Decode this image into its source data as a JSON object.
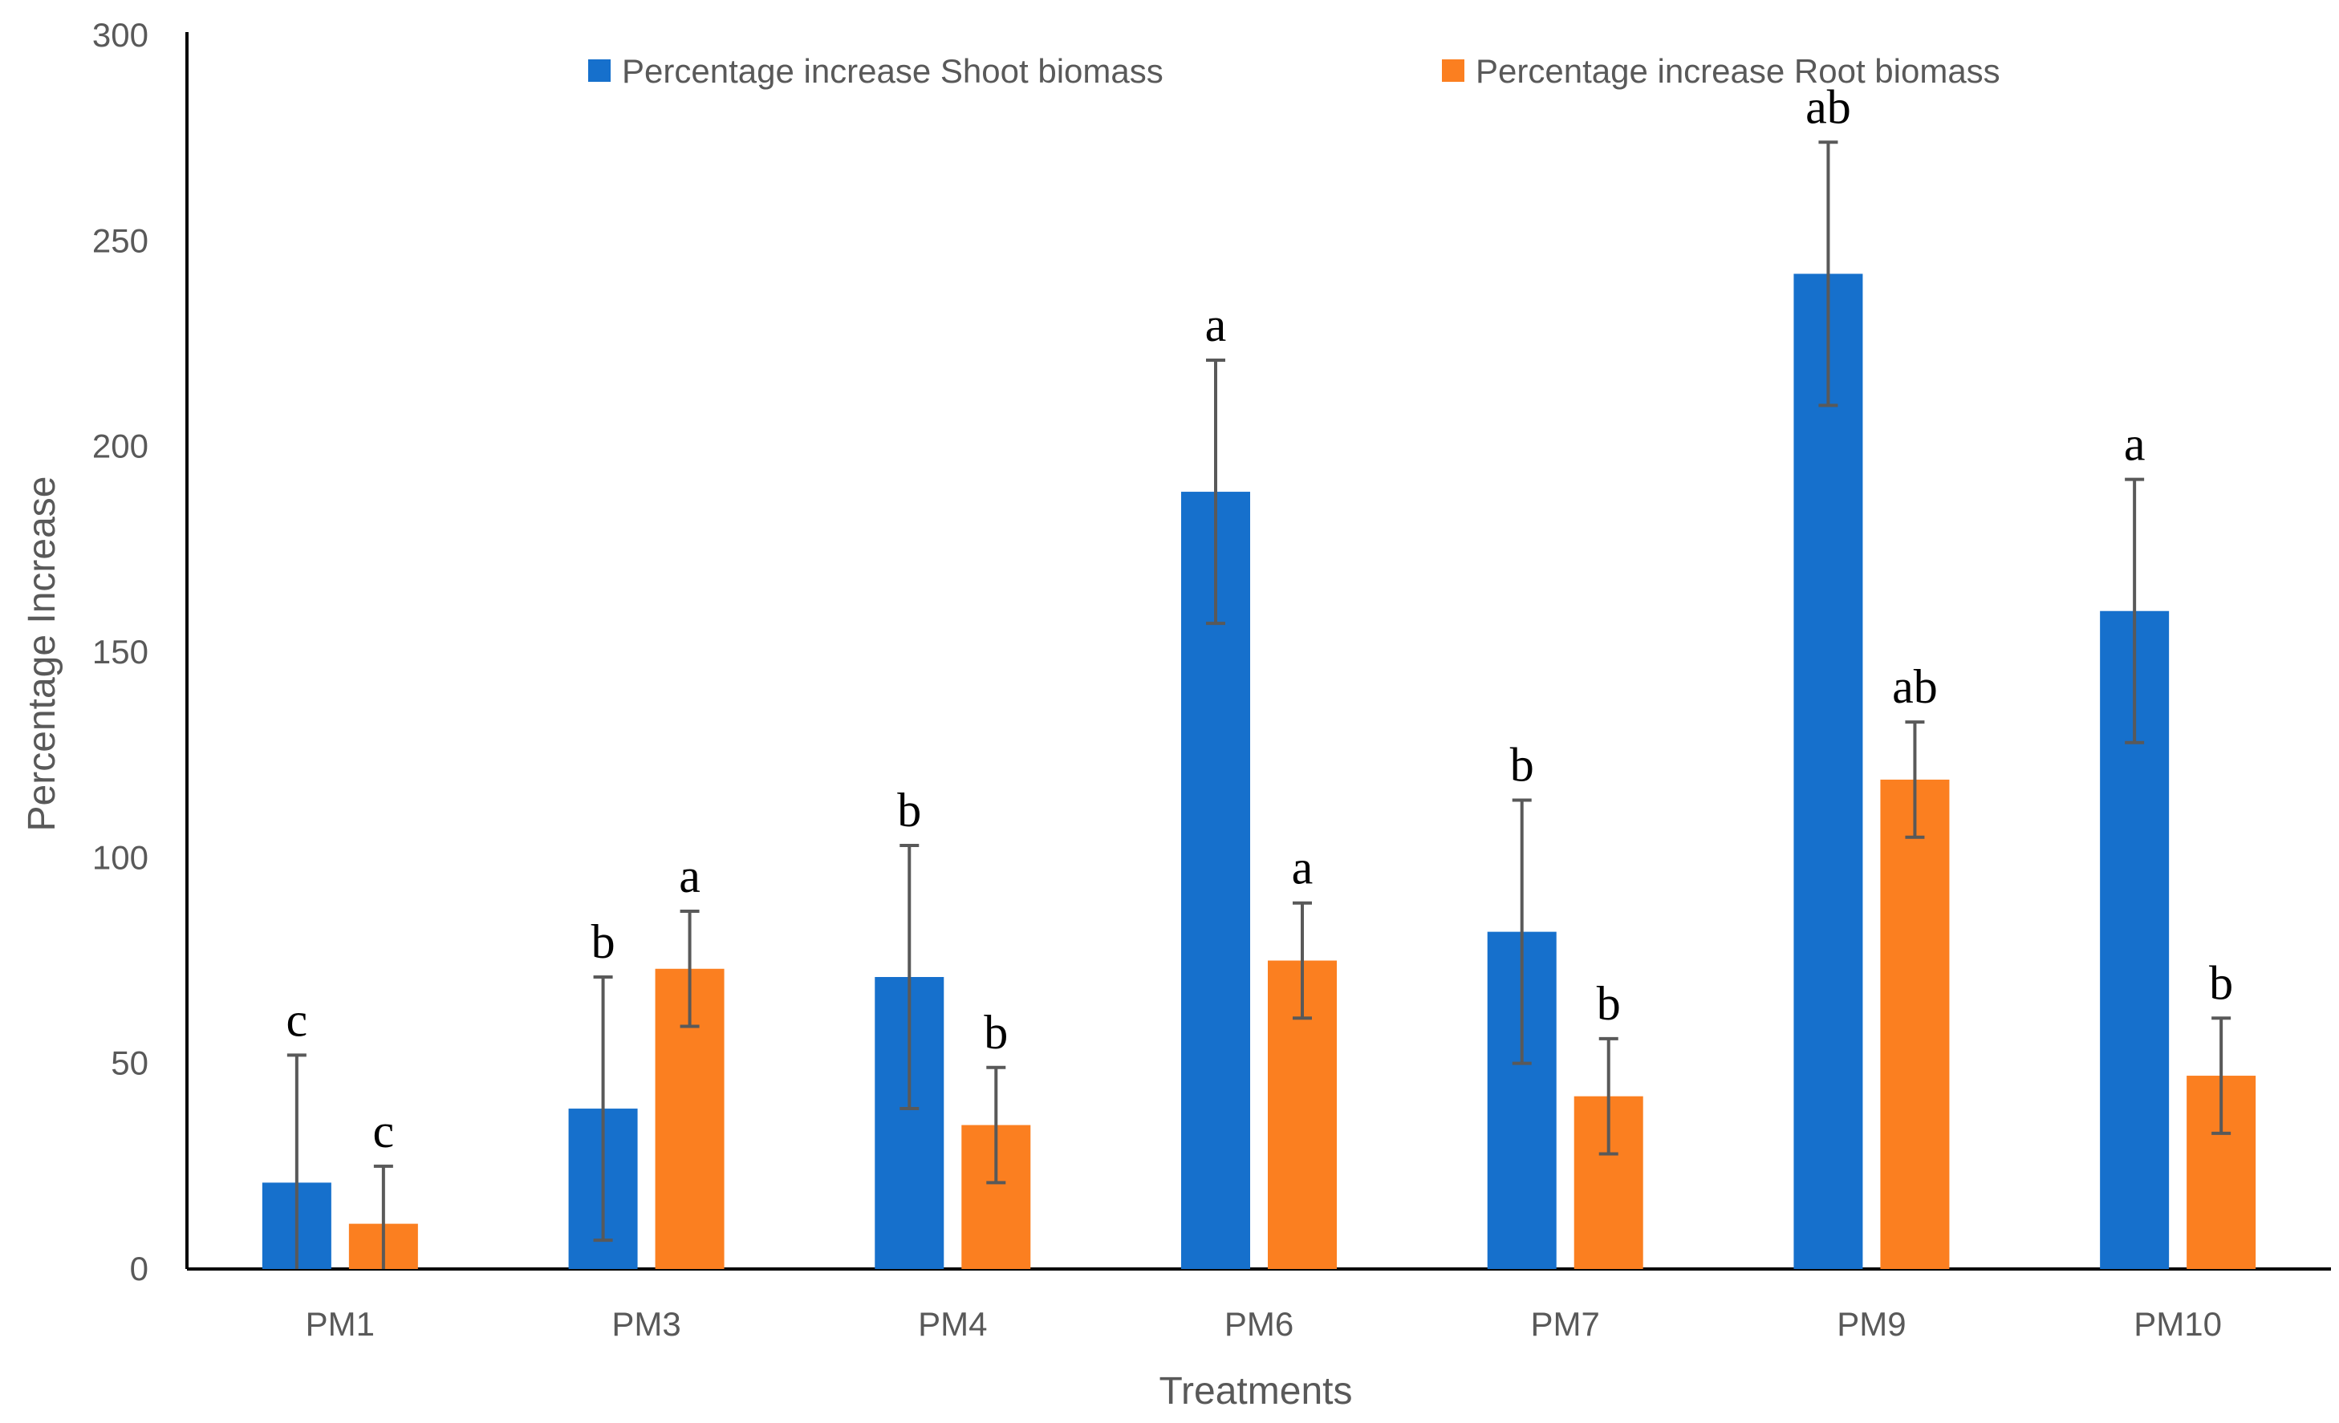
{
  "chart_data": {
    "type": "bar",
    "title": "",
    "xlabel": "Treatments",
    "ylabel": "Percentage Increase",
    "ylim": [
      0,
      300
    ],
    "yticks": [
      0,
      50,
      100,
      150,
      200,
      250,
      300
    ],
    "grid": false,
    "legend_position": "top",
    "categories": [
      "PM1",
      "PM3",
      "PM4",
      "PM6",
      "PM7",
      "PM9",
      "PM10"
    ],
    "series": [
      {
        "name": "Percentage increase Shoot biomass",
        "color": "#1670cc",
        "values": [
          21,
          39,
          71,
          189,
          82,
          242,
          160
        ],
        "errors": [
          31,
          32,
          32,
          32,
          32,
          32,
          32
        ],
        "labels": [
          "c",
          "b",
          "b",
          "a",
          "b",
          "ab",
          "a"
        ]
      },
      {
        "name": "Percentage increase Root biomass",
        "color": "#fb7f20",
        "values": [
          11,
          73,
          35,
          75,
          42,
          119,
          47
        ],
        "errors": [
          14,
          14,
          14,
          14,
          14,
          14,
          14
        ],
        "labels": [
          "c",
          "a",
          "b",
          "a",
          "b",
          "ab",
          "b"
        ]
      }
    ]
  }
}
